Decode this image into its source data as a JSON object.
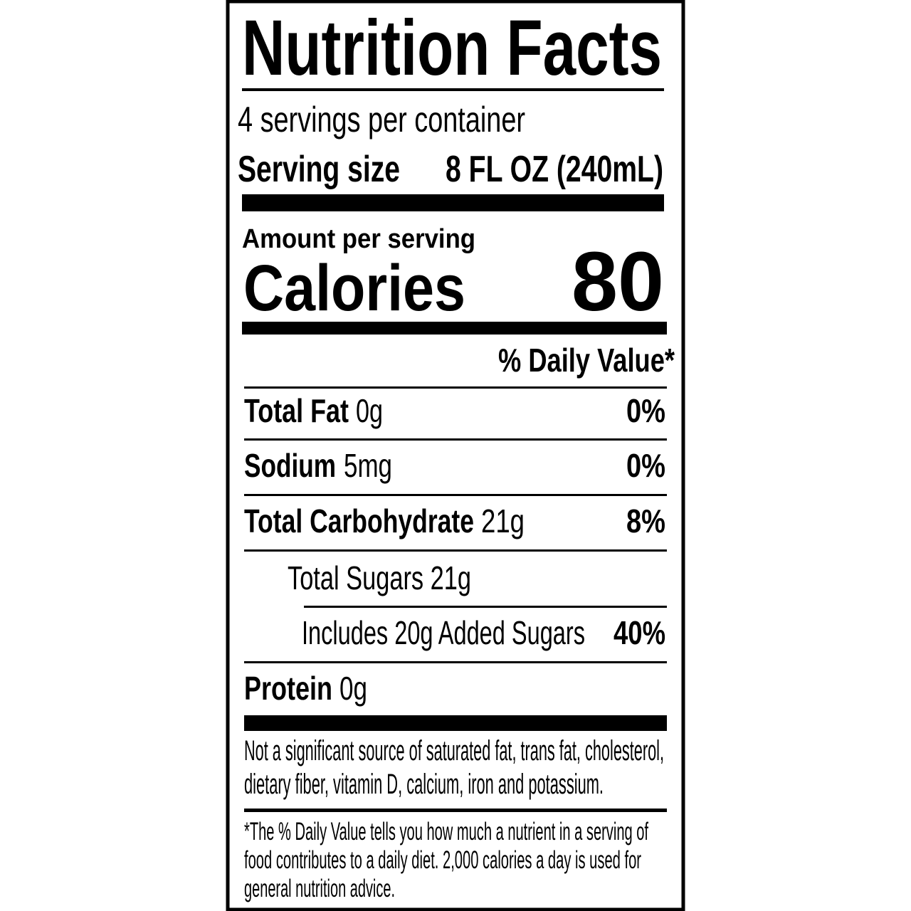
{
  "label": {
    "title": "Nutrition Facts",
    "servings": "4 servings per container",
    "serving_size": {
      "label": "Serving size",
      "value": "8 FL OZ (240mL)"
    },
    "amount_per_serving": "Amount per serving",
    "calories": {
      "label": "Calories",
      "value": "80"
    },
    "daily_value_header": "% Daily Value*",
    "nutrients": [
      {
        "name": "Total Fat",
        "amount": "0g",
        "dv": "0%"
      },
      {
        "name": "Sodium",
        "amount": "5mg",
        "dv": "0%"
      },
      {
        "name": "Total Carbohydrate",
        "amount": "21g",
        "dv": "8%"
      },
      {
        "name": "Total Sugars 21g"
      },
      {
        "name": "Includes 20g Added Sugars",
        "dv": "40%"
      },
      {
        "name": "Protein",
        "amount": "0g"
      }
    ],
    "note": [
      "Not a significant source of saturated fat, trans fat, cholesterol,",
      "dietary fiber, vitamin D, calcium, iron and potassium."
    ],
    "footnote": [
      "*The % Daily Value tells you how much a nutrient in a serving of",
      "food contributes to a daily diet. 2,000 calories a day is used for",
      "general nutrition advice."
    ]
  }
}
